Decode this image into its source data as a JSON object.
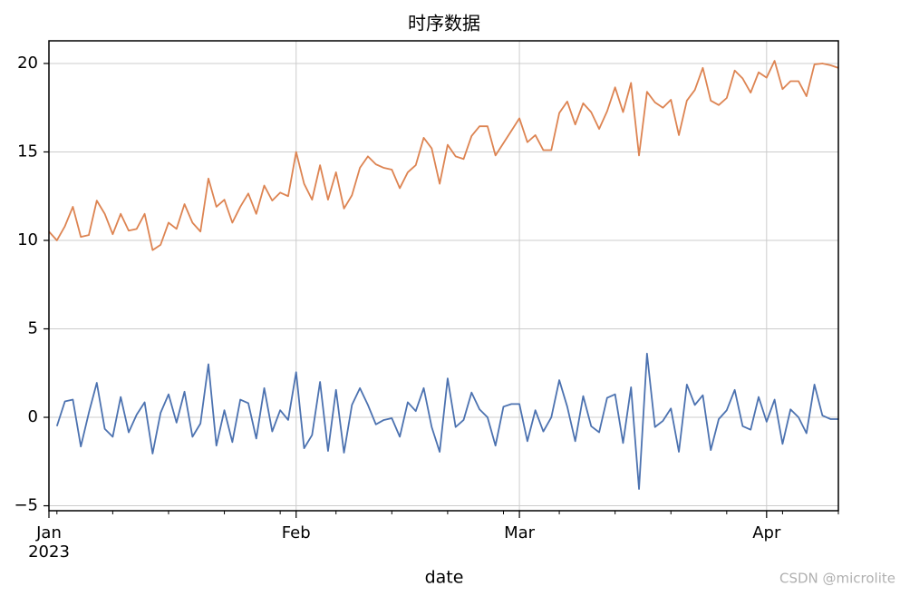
{
  "chart_data": {
    "type": "line",
    "title": "时序数据",
    "xlabel": "date",
    "x_year_label": "2023",
    "watermark": "CSDN @microlite",
    "grid": true,
    "x": [
      0,
      1,
      2,
      3,
      4,
      5,
      6,
      7,
      8,
      9,
      10,
      11,
      12,
      13,
      14,
      15,
      16,
      17,
      18,
      19,
      20,
      21,
      22,
      23,
      24,
      25,
      26,
      27,
      28,
      29,
      30,
      31,
      32,
      33,
      34,
      35,
      36,
      37,
      38,
      39,
      40,
      41,
      42,
      43,
      44,
      45,
      46,
      47,
      48,
      49,
      50,
      51,
      52,
      53,
      54,
      55,
      56,
      57,
      58,
      59,
      60,
      61,
      62,
      63,
      64,
      65,
      66,
      67,
      68,
      69,
      70,
      71,
      72,
      73,
      74,
      75,
      76,
      77,
      78,
      79,
      80,
      81,
      82,
      83,
      84,
      85,
      86,
      87,
      88,
      89,
      90,
      91,
      92,
      93,
      94,
      95,
      96,
      97,
      98,
      99
    ],
    "xlim": [
      0,
      99
    ],
    "xticks": [
      {
        "value": 0,
        "label": "Jan"
      },
      {
        "value": 31,
        "label": "Feb"
      },
      {
        "value": 59,
        "label": "Mar"
      },
      {
        "value": 90,
        "label": "Apr"
      }
    ],
    "xminor_ticks": [
      1,
      8,
      15,
      22,
      29,
      36,
      43,
      50,
      57,
      64,
      71,
      78,
      85,
      92,
      99
    ],
    "ylim": [
      -5.28,
      21.28
    ],
    "yticks": [
      {
        "value": -5,
        "label": "−5"
      },
      0,
      5,
      10,
      15,
      20
    ],
    "series": [
      {
        "color": "#4c72b0",
        "values": [
          null,
          -0.5,
          0.9,
          1.0,
          -1.65,
          0.25,
          1.95,
          -0.65,
          -1.1,
          1.15,
          -0.85,
          0.15,
          0.85,
          -2.05,
          0.25,
          1.3,
          -0.3,
          1.45,
          -1.1,
          -0.35,
          3.0,
          -1.6,
          0.4,
          -1.4,
          1.0,
          0.8,
          -1.2,
          1.65,
          -0.8,
          0.4,
          -0.15,
          2.55,
          -1.75,
          -1.0,
          2.0,
          -1.9,
          1.55,
          -2.0,
          0.7,
          1.65,
          0.7,
          -0.4,
          -0.15,
          -0.05,
          -1.1,
          0.85,
          0.35,
          1.65,
          -0.55,
          -1.95,
          2.2,
          -0.55,
          -0.15,
          1.4,
          0.45,
          0.0,
          -1.6,
          0.6,
          0.75,
          0.75,
          -1.35,
          0.4,
          -0.8,
          0.0,
          2.1,
          0.6,
          -1.35,
          1.2,
          -0.5,
          -0.85,
          1.1,
          1.3,
          -1.45,
          1.7,
          -4.05,
          3.6,
          -0.55,
          -0.2,
          0.5,
          -1.95,
          1.85,
          0.7,
          1.25,
          -1.85,
          -0.1,
          0.4,
          1.55,
          -0.5,
          -0.7,
          1.15,
          -0.25,
          1.0,
          -1.5,
          0.45,
          0.0,
          -0.9,
          1.85,
          0.1,
          -0.1,
          -0.1
        ]
      },
      {
        "color": "#dd8452",
        "values": [
          10.5,
          10.0,
          10.8,
          11.9,
          10.2,
          10.3,
          12.25,
          11.5,
          10.35,
          11.5,
          10.55,
          10.65,
          11.5,
          9.45,
          9.75,
          11.0,
          10.65,
          12.05,
          11.0,
          10.5,
          13.5,
          11.9,
          12.3,
          11.0,
          11.9,
          12.65,
          11.5,
          13.1,
          12.25,
          12.7,
          12.5,
          15.0,
          13.2,
          12.3,
          14.25,
          12.3,
          13.85,
          11.8,
          12.55,
          14.1,
          14.75,
          14.3,
          14.1,
          14.0,
          12.95,
          13.85,
          14.25,
          15.8,
          15.2,
          13.2,
          15.4,
          14.75,
          14.6,
          15.9,
          16.45,
          16.45,
          14.8,
          15.5,
          16.2,
          16.9,
          15.55,
          15.95,
          15.1,
          15.1,
          17.2,
          17.85,
          16.55,
          17.75,
          17.25,
          16.3,
          17.3,
          18.65,
          17.25,
          18.9,
          14.8,
          18.4,
          17.8,
          17.5,
          17.95,
          15.95,
          17.9,
          18.5,
          19.75,
          17.9,
          17.65,
          18.05,
          19.6,
          19.15,
          18.35,
          19.5,
          19.2,
          20.15,
          18.55,
          19.0,
          19.0,
          18.15,
          19.95,
          20.0,
          19.9,
          19.75
        ]
      }
    ]
  }
}
